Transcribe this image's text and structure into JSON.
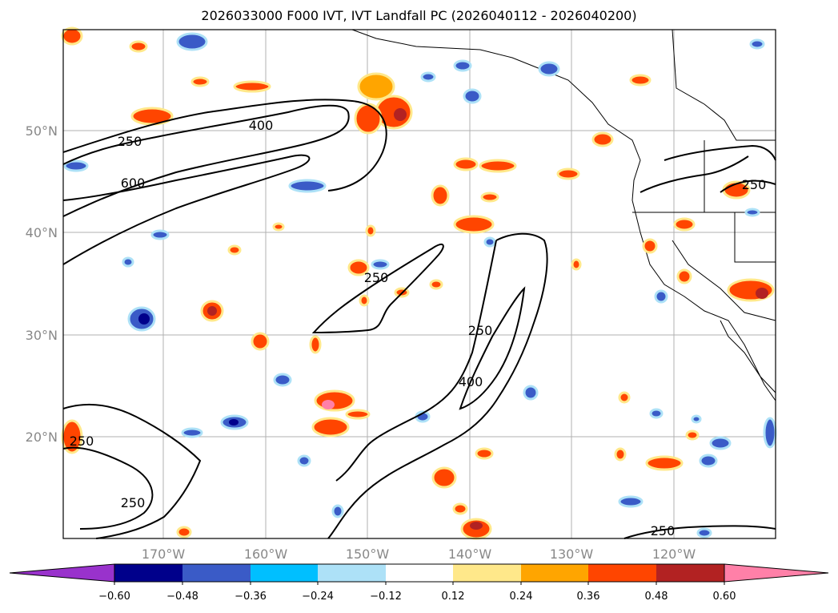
{
  "title": "2026033000 F000 IVT, IVT Landfall PC (2026040112 - 2026040200)",
  "map": {
    "latitude_labels": [
      "50°N",
      "40°N",
      "30°N",
      "20°N"
    ],
    "longitude_labels": [
      "170°W",
      "160°W",
      "150°W",
      "140°W",
      "130°W",
      "120°W"
    ],
    "contour_labels": [
      "250",
      "400",
      "600",
      "250",
      "250",
      "400",
      "250",
      "250",
      "250",
      "250"
    ]
  },
  "colorbar": {
    "colors": [
      "#9932CC",
      "#00008B",
      "#3A5BC7",
      "#00BFFF",
      "#ADE1F7",
      "#FFFFFF",
      "#FFE88A",
      "#FFA500",
      "#FF4500",
      "#B22222",
      "#FF80A8"
    ],
    "tick_labels": [
      "−0.60",
      "−0.48",
      "−0.36",
      "−0.24",
      "−0.12",
      "0.12",
      "0.24",
      "0.36",
      "0.48",
      "0.60"
    ]
  }
}
